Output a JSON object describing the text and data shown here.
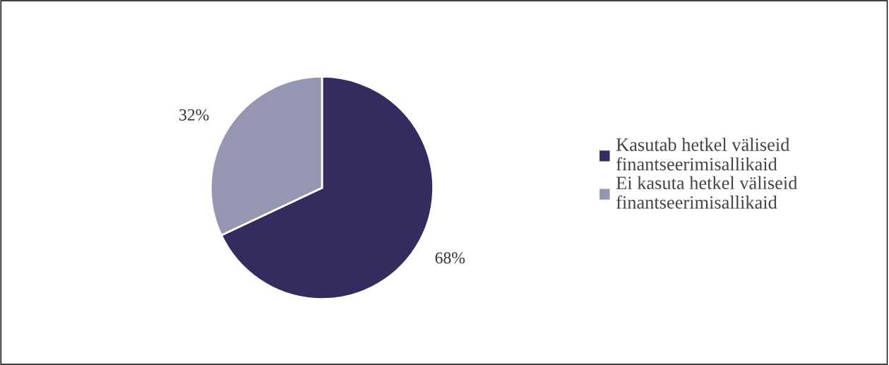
{
  "chart_data": {
    "type": "pie",
    "categories": [
      "Kasutab hetkel väliseid finantseerimisallikaid",
      "Ei kasuta hetkel väliseid finantseerimisallikaid"
    ],
    "values": [
      68,
      32
    ],
    "colors": [
      "#352b5f",
      "#9597b2"
    ],
    "value_labels": [
      "68%",
      "32%"
    ],
    "legend": "right"
  }
}
